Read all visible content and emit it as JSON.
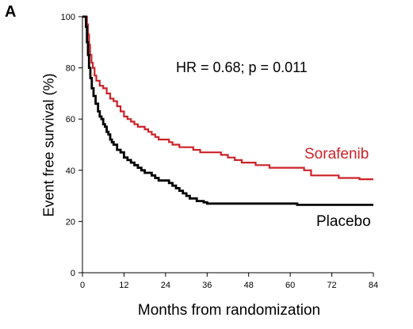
{
  "panel_label": "A",
  "chart_data": {
    "type": "line",
    "subtype": "kaplan-meier",
    "xlabel": "Months from randomization",
    "ylabel": "Event free survival (%)",
    "xlim": [
      0,
      84
    ],
    "ylim": [
      0,
      100
    ],
    "x_ticks": [
      0,
      12,
      24,
      36,
      48,
      60,
      72,
      84
    ],
    "y_ticks": [
      0,
      20,
      40,
      60,
      80,
      100
    ],
    "annotation": "HR = 0.68; p = 0.011",
    "grid": false,
    "series": [
      {
        "name": "Sorafenib",
        "color": "#cc2229",
        "points": [
          [
            0,
            100
          ],
          [
            1,
            100
          ],
          [
            1.3,
            97
          ],
          [
            1.6,
            93
          ],
          [
            1.9,
            89
          ],
          [
            2.2,
            85
          ],
          [
            2.6,
            82
          ],
          [
            3,
            80
          ],
          [
            3.5,
            77
          ],
          [
            4,
            75
          ],
          [
            5,
            73
          ],
          [
            6,
            72
          ],
          [
            7,
            70
          ],
          [
            8,
            68
          ],
          [
            9,
            67
          ],
          [
            10,
            65
          ],
          [
            11,
            63
          ],
          [
            12,
            61
          ],
          [
            13,
            60
          ],
          [
            14,
            59
          ],
          [
            15,
            58
          ],
          [
            16,
            57
          ],
          [
            17,
            57
          ],
          [
            18,
            56
          ],
          [
            19,
            55
          ],
          [
            20,
            54
          ],
          [
            21,
            53
          ],
          [
            22,
            52
          ],
          [
            24,
            52
          ],
          [
            25,
            51
          ],
          [
            26,
            50
          ],
          [
            27,
            50
          ],
          [
            28,
            49
          ],
          [
            30,
            49
          ],
          [
            32,
            48
          ],
          [
            33,
            48
          ],
          [
            34,
            47
          ],
          [
            38,
            47
          ],
          [
            40,
            46
          ],
          [
            42,
            45
          ],
          [
            44,
            44
          ],
          [
            46,
            43
          ],
          [
            48,
            43
          ],
          [
            50,
            42
          ],
          [
            52,
            42
          ],
          [
            54,
            41
          ],
          [
            62,
            41
          ],
          [
            64,
            40
          ],
          [
            66,
            38
          ],
          [
            72,
            38
          ],
          [
            74,
            37
          ],
          [
            78,
            37
          ],
          [
            80,
            36.5
          ],
          [
            84,
            36.5
          ]
        ]
      },
      {
        "name": "Placebo",
        "color": "#000000",
        "points": [
          [
            0,
            100
          ],
          [
            0.8,
            100
          ],
          [
            1,
            96
          ],
          [
            1.3,
            90
          ],
          [
            1.6,
            85
          ],
          [
            1.9,
            80
          ],
          [
            2.3,
            76
          ],
          [
            2.7,
            72
          ],
          [
            3.2,
            69
          ],
          [
            3.8,
            66
          ],
          [
            4.5,
            63
          ],
          [
            5,
            61
          ],
          [
            5.5,
            60
          ],
          [
            6,
            58
          ],
          [
            6.5,
            57
          ],
          [
            7,
            55
          ],
          [
            7.5,
            54
          ],
          [
            8,
            52
          ],
          [
            8.5,
            51
          ],
          [
            9,
            50
          ],
          [
            10,
            48
          ],
          [
            11,
            47
          ],
          [
            12,
            45
          ],
          [
            13,
            44
          ],
          [
            14,
            43
          ],
          [
            15,
            42
          ],
          [
            16,
            41
          ],
          [
            17,
            40
          ],
          [
            18,
            39
          ],
          [
            19,
            39
          ],
          [
            20,
            38
          ],
          [
            21,
            37
          ],
          [
            22,
            36
          ],
          [
            24,
            36
          ],
          [
            25,
            35
          ],
          [
            26,
            34
          ],
          [
            27,
            33
          ],
          [
            28,
            32
          ],
          [
            29,
            31
          ],
          [
            30,
            30
          ],
          [
            31,
            29
          ],
          [
            32,
            29
          ],
          [
            33,
            28
          ],
          [
            34,
            28
          ],
          [
            35,
            27.5
          ],
          [
            36,
            27
          ],
          [
            42,
            27
          ],
          [
            48,
            27
          ],
          [
            54,
            27
          ],
          [
            60,
            27
          ],
          [
            62,
            26.5
          ],
          [
            72,
            26.5
          ],
          [
            84,
            26.5
          ]
        ]
      }
    ]
  }
}
